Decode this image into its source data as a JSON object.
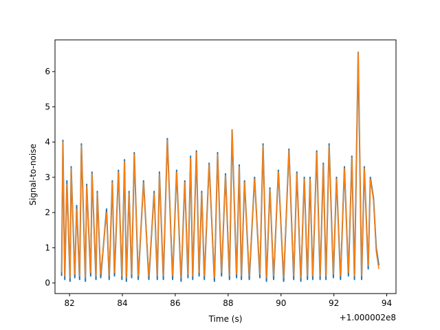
{
  "chart_data": {
    "type": "line",
    "title": "",
    "xlabel": "Time (s)",
    "ylabel": "Signal-to-noise",
    "x_offset_label": "+1.000002e8",
    "xlim": [
      81.45,
      94.35
    ],
    "ylim": [
      -0.3,
      6.9
    ],
    "x_ticks": [
      "82",
      "84",
      "86",
      "88",
      "90",
      "92",
      "94"
    ],
    "y_ticks": [
      "0",
      "1",
      "2",
      "3",
      "4",
      "5",
      "6"
    ],
    "grid": false,
    "legend": "none",
    "series": [
      {
        "color": "#1f77b4",
        "x": [
          81.7,
          81.75,
          81.82,
          81.9,
          82.02,
          82.06,
          82.2,
          82.27,
          82.38,
          82.45,
          82.6,
          82.65,
          82.8,
          82.85,
          83.0,
          83.05,
          83.18,
          83.4,
          83.5,
          83.62,
          83.7,
          83.85,
          83.98,
          84.08,
          84.15,
          84.25,
          84.35,
          84.45,
          84.6,
          84.8,
          85.0,
          85.2,
          85.32,
          85.4,
          85.55,
          85.7,
          85.9,
          86.05,
          86.22,
          86.36,
          86.48,
          86.58,
          86.66,
          86.8,
          86.9,
          87.0,
          87.1,
          87.28,
          87.48,
          87.6,
          87.75,
          87.9,
          88.05,
          88.15,
          88.32,
          88.42,
          88.5,
          88.62,
          88.8,
          89.0,
          89.2,
          89.32,
          89.45,
          89.58,
          89.72,
          89.9,
          90.1,
          90.3,
          90.48,
          90.6,
          90.75,
          90.88,
          91.0,
          91.1,
          91.2,
          91.35,
          91.48,
          91.6,
          91.7,
          91.82,
          91.98,
          92.1,
          92.25,
          92.4,
          92.55,
          92.68,
          92.78,
          92.92,
          93.05,
          93.15,
          93.3,
          93.38,
          93.5,
          93.6,
          93.7
        ],
        "y": [
          0.2,
          4.05,
          0.1,
          2.9,
          0.05,
          3.3,
          0.15,
          2.2,
          0.1,
          3.95,
          0.05,
          2.8,
          0.2,
          3.15,
          0.1,
          2.6,
          0.15,
          2.1,
          0.1,
          2.9,
          0.2,
          3.2,
          0.1,
          3.5,
          0.05,
          2.6,
          0.15,
          3.7,
          0.1,
          2.9,
          0.1,
          2.6,
          0.1,
          3.15,
          0.1,
          4.1,
          0.1,
          3.2,
          0.05,
          2.9,
          0.15,
          3.6,
          0.1,
          3.75,
          0.2,
          2.6,
          0.1,
          3.4,
          0.05,
          3.7,
          0.2,
          3.1,
          0.1,
          4.35,
          0.15,
          3.35,
          0.1,
          2.9,
          0.1,
          3.0,
          0.15,
          3.95,
          0.05,
          2.7,
          0.1,
          3.2,
          0.05,
          3.8,
          0.1,
          3.15,
          0.05,
          3.0,
          0.1,
          3.0,
          0.1,
          3.75,
          0.1,
          3.4,
          0.1,
          3.95,
          0.15,
          3.0,
          0.1,
          3.3,
          0.2,
          3.6,
          0.1,
          6.55,
          0.1,
          3.3,
          0.4,
          3.0,
          2.4,
          1.0,
          0.5
        ]
      },
      {
        "color": "#ff7f0e",
        "x": [
          81.7,
          81.75,
          81.82,
          81.9,
          82.02,
          82.06,
          82.2,
          82.27,
          82.38,
          82.45,
          82.6,
          82.65,
          82.8,
          82.85,
          83.0,
          83.05,
          83.18,
          83.4,
          83.5,
          83.62,
          83.7,
          83.85,
          83.98,
          84.08,
          84.15,
          84.25,
          84.35,
          84.45,
          84.6,
          84.8,
          85.0,
          85.2,
          85.32,
          85.4,
          85.55,
          85.7,
          85.9,
          86.05,
          86.22,
          86.36,
          86.48,
          86.58,
          86.66,
          86.8,
          86.9,
          87.0,
          87.1,
          87.28,
          87.48,
          87.6,
          87.75,
          87.9,
          88.05,
          88.15,
          88.32,
          88.42,
          88.5,
          88.62,
          88.8,
          89.0,
          89.2,
          89.32,
          89.45,
          89.58,
          89.72,
          89.9,
          90.1,
          90.3,
          90.48,
          90.6,
          90.75,
          90.88,
          91.0,
          91.1,
          91.2,
          91.35,
          91.48,
          91.6,
          91.7,
          91.82,
          91.98,
          92.1,
          92.25,
          92.4,
          92.55,
          92.68,
          92.78,
          92.92,
          93.05,
          93.15,
          93.3,
          93.38,
          93.5,
          93.6,
          93.7
        ],
        "y": [
          0.3,
          4.0,
          0.2,
          2.8,
          0.15,
          3.25,
          0.25,
          2.1,
          0.2,
          3.9,
          0.15,
          2.75,
          0.3,
          3.1,
          0.2,
          2.55,
          0.25,
          2.0,
          0.2,
          2.85,
          0.3,
          3.15,
          0.2,
          3.45,
          0.15,
          2.55,
          0.25,
          3.65,
          0.2,
          2.85,
          0.2,
          2.55,
          0.2,
          3.1,
          0.2,
          4.05,
          0.2,
          3.15,
          0.15,
          2.85,
          0.25,
          3.55,
          0.2,
          3.7,
          0.3,
          2.55,
          0.2,
          3.35,
          0.15,
          3.65,
          0.3,
          3.05,
          0.2,
          4.35,
          0.25,
          3.3,
          0.2,
          2.85,
          0.2,
          2.95,
          0.25,
          3.9,
          0.15,
          2.65,
          0.2,
          3.15,
          0.15,
          3.75,
          0.2,
          3.1,
          0.15,
          2.95,
          0.2,
          2.95,
          0.2,
          3.7,
          0.2,
          3.35,
          0.2,
          3.9,
          0.25,
          2.95,
          0.2,
          3.25,
          0.3,
          3.55,
          0.2,
          6.55,
          0.2,
          3.25,
          0.5,
          2.95,
          2.35,
          0.9,
          0.4
        ]
      }
    ]
  }
}
